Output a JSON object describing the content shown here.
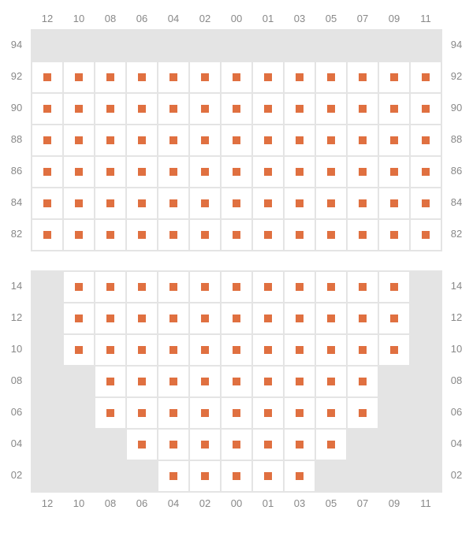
{
  "colors": {
    "seat": "#e07040",
    "inactive_bg": "#e4e4e4",
    "active_bg": "#ffffff",
    "border": "#e4e4e4",
    "label": "#888888"
  },
  "layout": {
    "cell_size": 40,
    "seat_marker_size": 10,
    "column_labels": [
      "12",
      "10",
      "08",
      "06",
      "04",
      "02",
      "00",
      "01",
      "03",
      "05",
      "07",
      "09",
      "11"
    ]
  },
  "sections": [
    {
      "id": "balcony",
      "show_top_cols": true,
      "show_bottom_cols": false,
      "rows": [
        {
          "label": "94",
          "seats": [
            0,
            0,
            0,
            0,
            0,
            0,
            0,
            0,
            0,
            0,
            0,
            0,
            0
          ]
        },
        {
          "label": "92",
          "seats": [
            1,
            1,
            1,
            1,
            1,
            1,
            1,
            1,
            1,
            1,
            1,
            1,
            1
          ]
        },
        {
          "label": "90",
          "seats": [
            1,
            1,
            1,
            1,
            1,
            1,
            1,
            1,
            1,
            1,
            1,
            1,
            1
          ]
        },
        {
          "label": "88",
          "seats": [
            1,
            1,
            1,
            1,
            1,
            1,
            1,
            1,
            1,
            1,
            1,
            1,
            1
          ]
        },
        {
          "label": "86",
          "seats": [
            1,
            1,
            1,
            1,
            1,
            1,
            1,
            1,
            1,
            1,
            1,
            1,
            1
          ]
        },
        {
          "label": "84",
          "seats": [
            1,
            1,
            1,
            1,
            1,
            1,
            1,
            1,
            1,
            1,
            1,
            1,
            1
          ]
        },
        {
          "label": "82",
          "seats": [
            1,
            1,
            1,
            1,
            1,
            1,
            1,
            1,
            1,
            1,
            1,
            1,
            1
          ]
        }
      ]
    },
    {
      "id": "orchestra",
      "show_top_cols": false,
      "show_bottom_cols": true,
      "rows": [
        {
          "label": "14",
          "seats": [
            0,
            1,
            1,
            1,
            1,
            1,
            1,
            1,
            1,
            1,
            1,
            1,
            0
          ]
        },
        {
          "label": "12",
          "seats": [
            0,
            1,
            1,
            1,
            1,
            1,
            1,
            1,
            1,
            1,
            1,
            1,
            0
          ]
        },
        {
          "label": "10",
          "seats": [
            0,
            1,
            1,
            1,
            1,
            1,
            1,
            1,
            1,
            1,
            1,
            1,
            0
          ]
        },
        {
          "label": "08",
          "seats": [
            0,
            0,
            1,
            1,
            1,
            1,
            1,
            1,
            1,
            1,
            1,
            0,
            0
          ]
        },
        {
          "label": "06",
          "seats": [
            0,
            0,
            1,
            1,
            1,
            1,
            1,
            1,
            1,
            1,
            1,
            0,
            0
          ]
        },
        {
          "label": "04",
          "seats": [
            0,
            0,
            0,
            1,
            1,
            1,
            1,
            1,
            1,
            1,
            0,
            0,
            0
          ]
        },
        {
          "label": "02",
          "seats": [
            0,
            0,
            0,
            0,
            1,
            1,
            1,
            1,
            1,
            0,
            0,
            0,
            0
          ]
        }
      ]
    }
  ]
}
